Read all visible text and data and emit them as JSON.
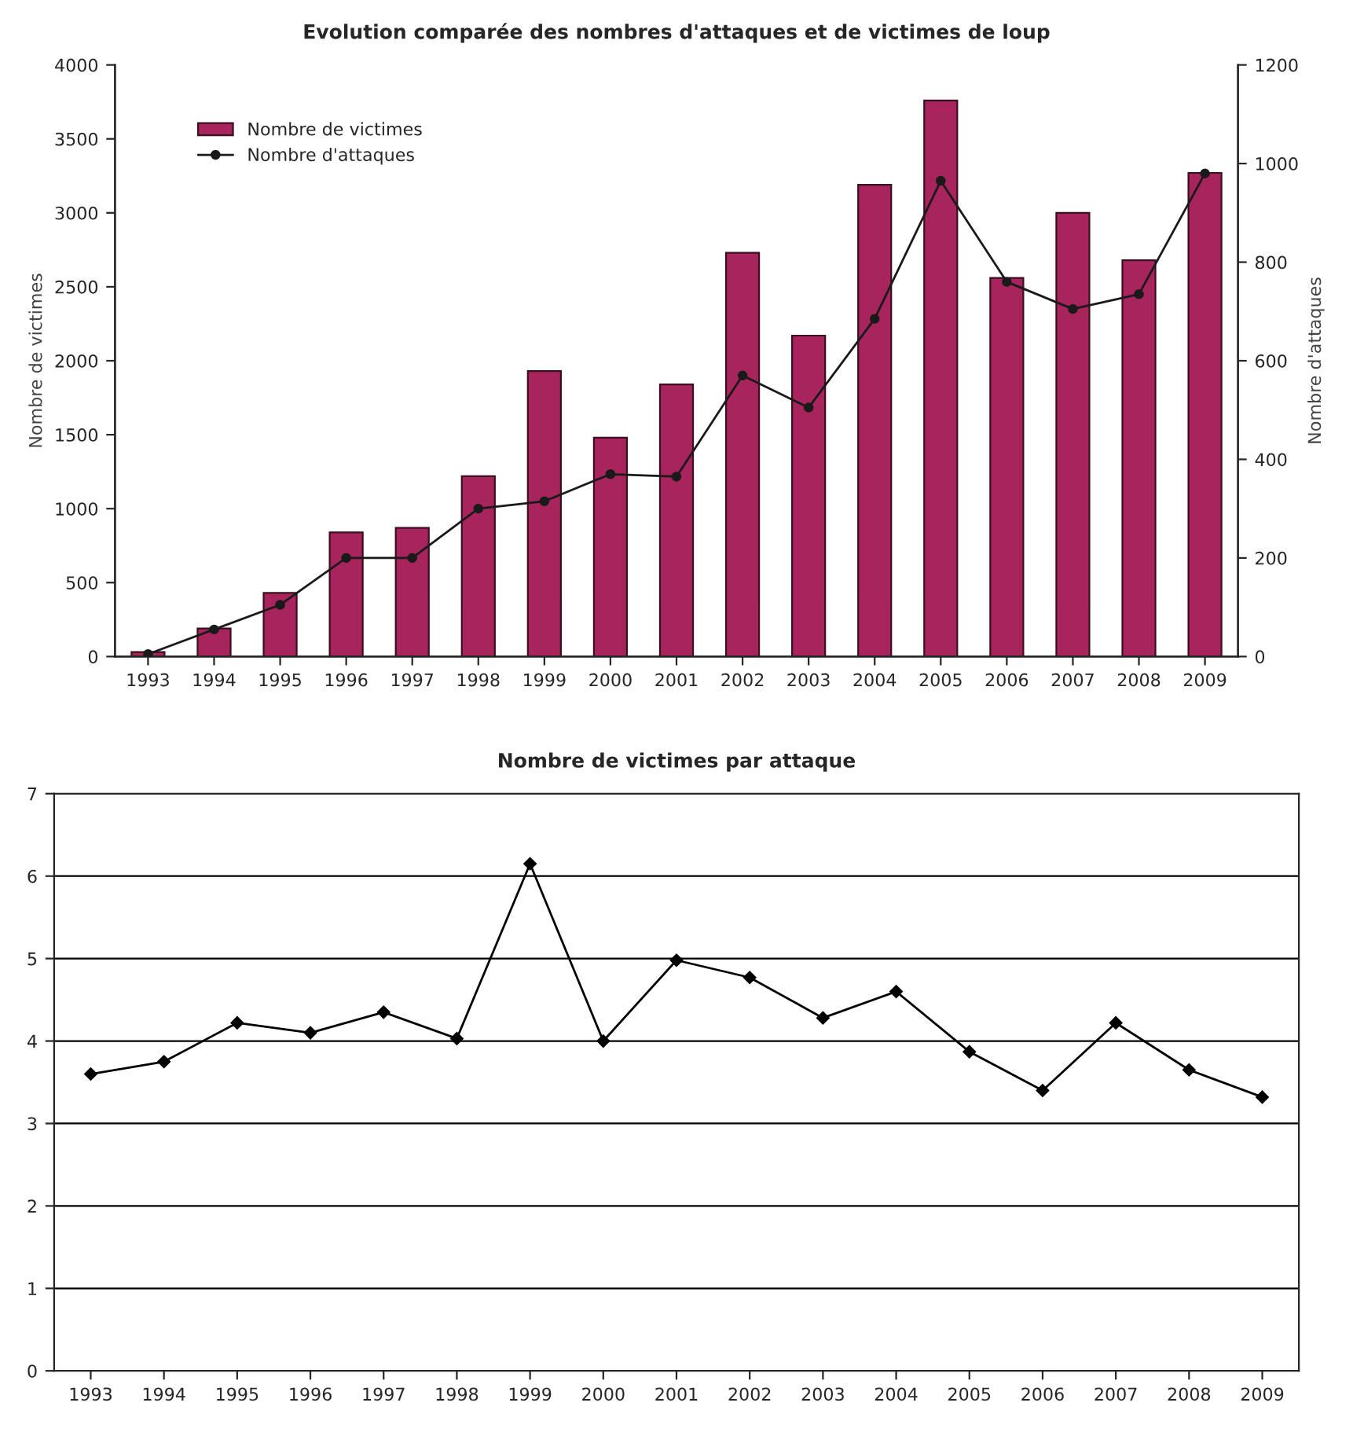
{
  "chart_data": [
    {
      "type": "bar",
      "title": "Evolution comparée des nombres d'attaques et de victimes de loup",
      "ylabel": "Nombre de victimes",
      "y2label": "Nombre d'attaques",
      "categories": [
        "1993",
        "1994",
        "1995",
        "1996",
        "1997",
        "1998",
        "1999",
        "2000",
        "2001",
        "2002",
        "2003",
        "2004",
        "2005",
        "2006",
        "2007",
        "2008",
        "2009"
      ],
      "series": [
        {
          "name": "Nombre de victimes",
          "type": "bar",
          "color": "#a8245c",
          "values": [
            30,
            190,
            430,
            840,
            870,
            1220,
            1930,
            1480,
            1840,
            2730,
            2170,
            3190,
            3760,
            2560,
            3000,
            2680,
            3270
          ]
        },
        {
          "name": "Nombre d'attaques",
          "type": "line",
          "axis": "y2",
          "color": "#1a1a1a",
          "marker": "circle",
          "values": [
            5,
            55,
            105,
            200,
            200,
            300,
            315,
            370,
            365,
            570,
            505,
            685,
            965,
            760,
            705,
            735,
            980
          ]
        }
      ],
      "ylim": [
        0,
        4000
      ],
      "yticks": [
        0,
        500,
        1000,
        1500,
        2000,
        2500,
        3000,
        3500,
        4000
      ],
      "y2lim": [
        0,
        1200
      ],
      "y2ticks": [
        0,
        200,
        400,
        600,
        800,
        1000,
        1200
      ],
      "legend": "top left",
      "grid": false
    },
    {
      "type": "line",
      "title": "Nombre de victimes par attaque",
      "categories": [
        "1993",
        "1994",
        "1995",
        "1996",
        "1997",
        "1998",
        "1999",
        "2000",
        "2001",
        "2002",
        "2003",
        "2004",
        "2005",
        "2006",
        "2007",
        "2008",
        "2009"
      ],
      "series": [
        {
          "color": "#000000",
          "values": [
            3.6,
            3.75,
            4.22,
            4.1,
            4.35,
            4.03,
            6.15,
            4.0,
            4.98,
            4.77,
            4.28,
            4.6,
            3.87,
            3.4,
            4.22,
            3.65,
            3.32
          ]
        }
      ],
      "ylim": [
        0,
        7
      ],
      "yticks": [
        0,
        1,
        2,
        3,
        4,
        5,
        6,
        7
      ],
      "grid": "y",
      "marker": "diamond",
      "line_style": "solid"
    }
  ]
}
